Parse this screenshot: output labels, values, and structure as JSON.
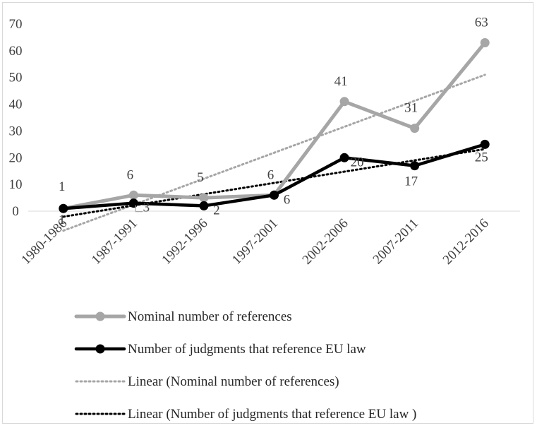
{
  "chart_data": {
    "type": "line",
    "categories": [
      "1980-1986",
      "1987-1991",
      "1992-1996",
      "1997-2001",
      "2002-2006",
      "2007-2011",
      "2012-2016"
    ],
    "ylim": [
      0,
      70
    ],
    "yticks": [
      0,
      10,
      20,
      30,
      40,
      50,
      60,
      70
    ],
    "grid": false,
    "legend_position": "bottom",
    "series": [
      {
        "name": "Nominal number of references",
        "values": [
          1,
          6,
          5,
          6,
          41,
          31,
          63
        ],
        "labels": [
          "1",
          "6",
          "5",
          "6",
          "41",
          "31",
          "63"
        ],
        "color": "#a6a6a6",
        "style": "solid-marker"
      },
      {
        "name": "Number of judgments that reference EU law",
        "values": [
          1,
          3,
          2,
          6,
          20,
          17,
          25
        ],
        "labels": [
          "1",
          "3",
          "2",
          "6",
          "20",
          "17",
          "25"
        ],
        "color": "#000000",
        "style": "solid-marker"
      }
    ],
    "trendlines": [
      {
        "name": "Linear (Nominal number of references)",
        "kind": "linear",
        "of_series": 0,
        "color": "#a6a6a6",
        "style": "dotted"
      },
      {
        "name": "Linear (Number of judgments that reference EU law )",
        "kind": "linear",
        "of_series": 1,
        "color": "#000000",
        "style": "dotted"
      }
    ]
  }
}
